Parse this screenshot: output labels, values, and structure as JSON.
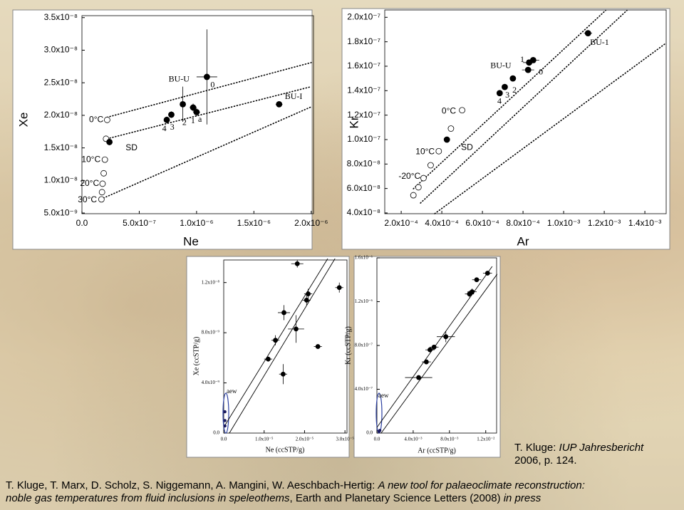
{
  "chart_data": [
    {
      "type": "scatter",
      "font": "sans",
      "xlabel": "Ne",
      "ylabel": "Xe",
      "xlim": [
        0,
        2.02e-06
      ],
      "ylim": [
        4.9e-09,
        3.53e-08
      ],
      "xticks": [
        {
          "value": 0,
          "label": "0.0"
        },
        {
          "value": 5e-07,
          "label": "5.0x10⁻⁷"
        },
        {
          "value": 1e-06,
          "label": "1.0x10⁻⁶"
        },
        {
          "value": 1.5e-06,
          "label": "1.5x10⁻⁶"
        },
        {
          "value": 2e-06,
          "label": "2.0x10⁻⁶"
        }
      ],
      "yticks": [
        {
          "value": 5e-09,
          "label": "5.0x10⁻⁹"
        },
        {
          "value": 1e-08,
          "label": "1.0x10⁻⁸"
        },
        {
          "value": 1.5e-08,
          "label": "1.5x10⁻⁸"
        },
        {
          "value": 2e-08,
          "label": "2.0x10⁻⁸"
        },
        {
          "value": 2.5e-08,
          "label": "2.5x10⁻⁸"
        },
        {
          "value": 3e-08,
          "label": "3.0x10⁻⁸"
        },
        {
          "value": 3.5e-08,
          "label": "3.5x10⁻⁸"
        }
      ],
      "series": [
        {
          "kind": "line",
          "style": "dotted",
          "color": "#000000",
          "x": [
            2.19e-07,
            2e-06
          ],
          "values": [
            1.97e-08,
            2.81e-08
          ]
        },
        {
          "kind": "line",
          "style": "dotted",
          "color": "#000000",
          "x": [
            2.19e-07,
            2e-06
          ],
          "values": [
            1.64e-08,
            2.44e-08
          ]
        },
        {
          "kind": "line",
          "style": "dotted",
          "color": "#000000",
          "x": [
            1.88e-07,
            2e-06
          ],
          "values": [
            7.3e-09,
            2.13e-08
          ]
        },
        {
          "kind": "open",
          "color": "#000000",
          "x": [
            2.2e-07,
            2.1e-07,
            2e-07,
            1.9e-07,
            1.8e-07,
            1.75e-07,
            1.7e-07
          ],
          "values": [
            1.93e-08,
            1.64e-08,
            1.32e-08,
            1.11e-08,
            9.5e-09,
            8.2e-09,
            7.1e-09
          ]
        },
        {
          "kind": "filled",
          "color": "#000000",
          "x": [
            2.4e-07,
            7.4e-07,
            7.8e-07,
            8.8e-07,
            9.7e-07,
            1e-06,
            1.09e-06,
            1.72e-06
          ],
          "values": [
            1.59e-08,
            1.93e-08,
            2.01e-08,
            2.17e-08,
            2.12e-08,
            2.05e-08,
            2.59e-08,
            2.17e-08
          ],
          "xerr": [
            2e-08,
            2e-08,
            2e-08,
            2e-08,
            3e-08,
            3e-08,
            9e-08,
            3e-08
          ],
          "yerr": [
            5e-10,
            5e-10,
            5e-10,
            2.7e-09,
            6e-10,
            6e-10,
            7.3e-09,
            4e-10
          ]
        }
      ],
      "annotations": [
        {
          "text": "0°C",
          "x": 1.875e-07,
          "y": 1.93e-08,
          "anchor": "end"
        },
        {
          "text": "10°C",
          "x": 1.625e-07,
          "y": 1.32e-08,
          "anchor": "end"
        },
        {
          "text": "20°C",
          "x": 1.5e-07,
          "y": 9.5e-09,
          "anchor": "end"
        },
        {
          "text": "30°C",
          "x": 1.31e-07,
          "y": 7e-09,
          "anchor": "end"
        },
        {
          "text": "SD",
          "x": 3.81e-07,
          "y": 1.5e-08,
          "anchor": "start"
        },
        {
          "text": "BU-U",
          "x": 7.56e-07,
          "y": 2.55e-08,
          "anchor": "start"
        },
        {
          "text": "BU-I",
          "x": 1.77e-06,
          "y": 2.28e-08,
          "anchor": "start"
        },
        {
          "text": "4",
          "x": 7.19e-07,
          "y": 1.79e-08,
          "anchor": "middle"
        },
        {
          "text": "3",
          "x": 7.88e-07,
          "y": 1.81e-08,
          "anchor": "middle"
        },
        {
          "text": "2",
          "x": 8.94e-07,
          "y": 1.88e-08,
          "anchor": "middle"
        },
        {
          "text": "1",
          "x": 9.69e-07,
          "y": 1.91e-08,
          "anchor": "middle"
        },
        {
          "text": "a",
          "x": 1.03e-06,
          "y": 1.93e-08,
          "anchor": "middle"
        },
        {
          "text": "0",
          "x": 1.14e-06,
          "y": 2.46e-08,
          "anchor": "middle"
        }
      ]
    },
    {
      "type": "scatter",
      "font": "sans",
      "xlabel": "Ar",
      "ylabel": "Kr",
      "xlim": [
        0.000119,
        0.001505
      ],
      "ylim": [
        3.94e-08,
        2.06e-07
      ],
      "xticks": [
        {
          "value": 0.0002,
          "label": "2.0x10⁻⁴"
        },
        {
          "value": 0.0004,
          "label": "4.0x10⁻⁴"
        },
        {
          "value": 0.0006,
          "label": "6.0x10⁻⁴"
        },
        {
          "value": 0.0008,
          "label": "8.0x10⁻⁴"
        },
        {
          "value": 0.001,
          "label": "1.0x10⁻³"
        },
        {
          "value": 0.0012,
          "label": "1.2x10⁻³"
        },
        {
          "value": 0.0014,
          "label": "1.4x10⁻³"
        }
      ],
      "yticks": [
        {
          "value": 4e-08,
          "label": "4.0x10⁻⁸"
        },
        {
          "value": 6e-08,
          "label": "6.0x10⁻⁸"
        },
        {
          "value": 8e-08,
          "label": "8.0x10⁻⁸"
        },
        {
          "value": 1e-07,
          "label": "1.0x10⁻⁷"
        },
        {
          "value": 1.2e-07,
          "label": "1.2x10⁻⁷"
        },
        {
          "value": 1.4e-07,
          "label": "1.4x10⁻⁷"
        },
        {
          "value": 1.6e-07,
          "label": "1.6x10⁻⁷"
        },
        {
          "value": 1.8e-07,
          "label": "1.8x10⁻⁷"
        },
        {
          "value": 2e-07,
          "label": "2.0x10⁻⁷"
        }
      ],
      "series": [
        {
          "kind": "line",
          "style": "dotted",
          "color": "#000000",
          "x": [
            0.00026,
            0.001207
          ],
          "values": [
            5.98e-08,
            2.057e-07
          ]
        },
        {
          "kind": "line",
          "style": "dotted",
          "color": "#000000",
          "x": [
            0.000295,
            0.001312
          ],
          "values": [
            4.81e-08,
            2.057e-07
          ]
        },
        {
          "kind": "line",
          "style": "dotted",
          "color": "#000000",
          "x": [
            0.000365,
            0.001505
          ],
          "values": [
            3.94e-08,
            1.79e-07
          ]
        },
        {
          "kind": "open",
          "color": "#000000",
          "x": [
            0.00026,
            0.000285,
            0.00031,
            0.000345,
            0.000385,
            0.000445,
            0.0005
          ],
          "values": [
            5.45e-08,
            6.1e-08,
            6.85e-08,
            7.9e-08,
            9.05e-08,
            1.09e-07,
            1.24e-07
          ]
        },
        {
          "kind": "filled",
          "color": "#000000",
          "x": [
            0.000425,
            0.000685,
            0.00071,
            0.00075,
            0.000825,
            0.00083,
            0.00085,
            0.00112
          ],
          "values": [
            1e-07,
            1.38e-07,
            1.43e-07,
            1.5e-07,
            1.57e-07,
            1.63e-07,
            1.65e-07,
            1.87e-07
          ],
          "xerr": [
            1e-05,
            1e-05,
            1e-05,
            1.5e-05,
            3e-05,
            3e-05,
            3e-05,
            2e-05
          ],
          "yerr": [
            1e-09,
            1.5e-09,
            1.5e-09,
            2e-09,
            2e-09,
            2e-09,
            2e-09,
            2e-09
          ]
        }
      ],
      "annotations": [
        {
          "text": "0°C",
          "x": 0.00047,
          "y": 1.23e-07,
          "anchor": "end"
        },
        {
          "text": "10°C",
          "x": 0.000365,
          "y": 9e-08,
          "anchor": "end"
        },
        {
          "text": "-20°C",
          "x": 0.000295,
          "y": 6.97e-08,
          "anchor": "end"
        },
        {
          "text": "SD",
          "x": 0.000495,
          "y": 9.35e-08,
          "anchor": "start"
        },
        {
          "text": "BU-U",
          "x": 0.000639,
          "y": 1.6e-07,
          "anchor": "start"
        },
        {
          "text": "BU-1",
          "x": 0.00113,
          "y": 1.79e-07,
          "anchor": "start"
        },
        {
          "text": "1",
          "x": 0.000796,
          "y": 1.65e-07,
          "anchor": "middle"
        },
        {
          "text": "2",
          "x": 0.000758,
          "y": 1.4e-07,
          "anchor": "middle"
        },
        {
          "text": "3",
          "x": 0.000723,
          "y": 1.36e-07,
          "anchor": "middle"
        },
        {
          "text": "4",
          "x": 0.000684,
          "y": 1.31e-07,
          "anchor": "middle"
        },
        {
          "text": "0",
          "x": 0.000888,
          "y": 1.55e-07,
          "anchor": "middle"
        }
      ]
    },
    {
      "type": "scatter",
      "font": "serif",
      "xlabel": "Ne (ccSTP/g)",
      "ylabel": "Xe (ccSTP/g)",
      "xlim": [
        0,
        3.05e-05
      ],
      "ylim": [
        0,
        1.38e-08
      ],
      "xticks": [
        {
          "value": 0,
          "label": "0.0"
        },
        {
          "value": 1e-05,
          "label": "1.0x10⁻⁵"
        },
        {
          "value": 2e-05,
          "label": "2.0x10⁻⁵"
        },
        {
          "value": 3e-05,
          "label": "3.0x10⁻⁵"
        }
      ],
      "yticks": [
        {
          "value": 0,
          "label": "0.0"
        },
        {
          "value": 4e-09,
          "label": "4.0x10⁻⁹"
        },
        {
          "value": 8e-09,
          "label": "8.0x10⁻⁹"
        },
        {
          "value": 1.2e-08,
          "label": "1.2x10⁻⁸"
        }
      ],
      "series": [
        {
          "kind": "line",
          "style": "solid",
          "color": "#000000",
          "x": [
            0,
            2.57e-05
          ],
          "values": [
            4.6e-10,
            1.389e-08
          ]
        },
        {
          "kind": "line",
          "style": "solid",
          "color": "#000000",
          "x": [
            1.4e-06,
            2.75e-05
          ],
          "values": [
            0,
            1.389e-08
          ]
        },
        {
          "kind": "dot",
          "color": "#1a1a60",
          "x": [
            3e-07,
            3e-07,
            3e-07
          ],
          "values": [
            1.7e-09,
            1e-09,
            5.7e-10
          ]
        },
        {
          "kind": "filled",
          "color": "#000000",
          "x": [
            1.82e-05,
            2.09e-05,
            2.05e-05,
            1.49e-05,
            1.79e-05,
            1.28e-05,
            2.33e-05,
            1.1e-05,
            1.47e-05,
            2.86e-05
          ],
          "values": [
            1.35e-08,
            1.11e-08,
            1.06e-08,
            9.6e-09,
            8.3e-09,
            7.4e-09,
            6.9e-09,
            5.9e-09,
            4.7e-09,
            1.16e-08
          ],
          "xerr": [
            1.5e-06,
            1e-06,
            1e-06,
            1.5e-06,
            2e-06,
            1e-06,
            1e-06,
            1e-06,
            1e-06,
            1e-06
          ],
          "yerr": [
            3e-10,
            4e-10,
            4e-10,
            6e-10,
            1.1e-09,
            4e-10,
            2e-10,
            2e-10,
            8e-10,
            4e-10
          ]
        }
      ],
      "annotations": [
        {
          "text": "aew",
          "x": 7e-07,
          "y": 3.3e-09,
          "anchor": "start"
        }
      ]
    },
    {
      "type": "scatter",
      "font": "serif",
      "xlabel": "Ar (ccSTP/g)",
      "ylabel": "Kr (ccSTP/g)",
      "xlim": [
        0,
        0.0132
      ],
      "ylim": [
        0,
        1.6e-06
      ],
      "xticks": [
        {
          "value": 0,
          "label": "0.0"
        },
        {
          "value": 0.004,
          "label": "4.0x10⁻³"
        },
        {
          "value": 0.008,
          "label": "8.0x10⁻³"
        },
        {
          "value": 0.012,
          "label": "1.2x10⁻²"
        }
      ],
      "yticks": [
        {
          "value": 0,
          "label": "0.0"
        },
        {
          "value": 4e-07,
          "label": "4.0x10⁻⁷"
        },
        {
          "value": 8e-07,
          "label": "8.0x10⁻⁷"
        },
        {
          "value": 1.2e-06,
          "label": "1.2x10⁻⁶"
        },
        {
          "value": 1.6e-06,
          "label": "1.6x10⁻⁶"
        }
      ],
      "series": [
        {
          "kind": "line",
          "style": "solid",
          "color": "#000000",
          "x": [
            0,
            0.0127
          ],
          "values": [
            5.2e-08,
            1.52e-06
          ]
        },
        {
          "kind": "line",
          "style": "solid",
          "color": "#000000",
          "x": [
            0.00047,
            0.01325
          ],
          "values": [
            0,
            1.45e-06
          ]
        },
        {
          "kind": "dot",
          "color": "#1a1a60",
          "x": [
            0.00024,
            0.00032
          ],
          "values": [
            1.6e-08,
            2.4e-08
          ]
        },
        {
          "kind": "filled",
          "color": "#000000",
          "x": [
            0.0046,
            0.00545,
            0.00585,
            0.0063,
            0.0076,
            0.0102,
            0.0105,
            0.011,
            0.0122
          ],
          "values": [
            5.07e-07,
            6.5e-07,
            7.6e-07,
            7.85e-07,
            8.8e-07,
            1.27e-06,
            1.29e-06,
            1.4e-06,
            1.46e-06
          ],
          "xerr": [
            0.0015,
            0.0005,
            0.0005,
            0.0005,
            0.001,
            0.0005,
            0.0005,
            0.0005,
            0.0005
          ],
          "yerr": [
            2e-08,
            2e-08,
            2e-08,
            2e-08,
            5e-08,
            3e-08,
            3e-08,
            2e-08,
            2e-08
          ]
        }
      ],
      "annotations": [
        {
          "text": "aew",
          "x": 0.00016,
          "y": 3.4e-07,
          "anchor": "start"
        }
      ]
    }
  ],
  "credit": [
    [
      {
        "text": "T. Kluge: ",
        "italic": false
      },
      {
        "text": "IUP Jahresbericht",
        "italic": true
      }
    ],
    [
      {
        "text": "2006, p. 124.",
        "italic": false
      }
    ]
  ],
  "citation": [
    [
      {
        "text": "T. Kluge, T. Marx, D. Scholz, S. Niggemann, A. Mangini, W. Aeschbach-Hertig: ",
        "italic": false
      },
      {
        "text": "A new tool for palaeoclimate reconstruction:",
        "italic": true
      }
    ],
    [
      {
        "text": "noble gas temperatures from fluid inclusions in speleothems",
        "italic": true
      },
      {
        "text": ", Earth and Planetary Science Letters (2008) ",
        "italic": false
      },
      {
        "text": "in press",
        "italic": true
      }
    ]
  ]
}
